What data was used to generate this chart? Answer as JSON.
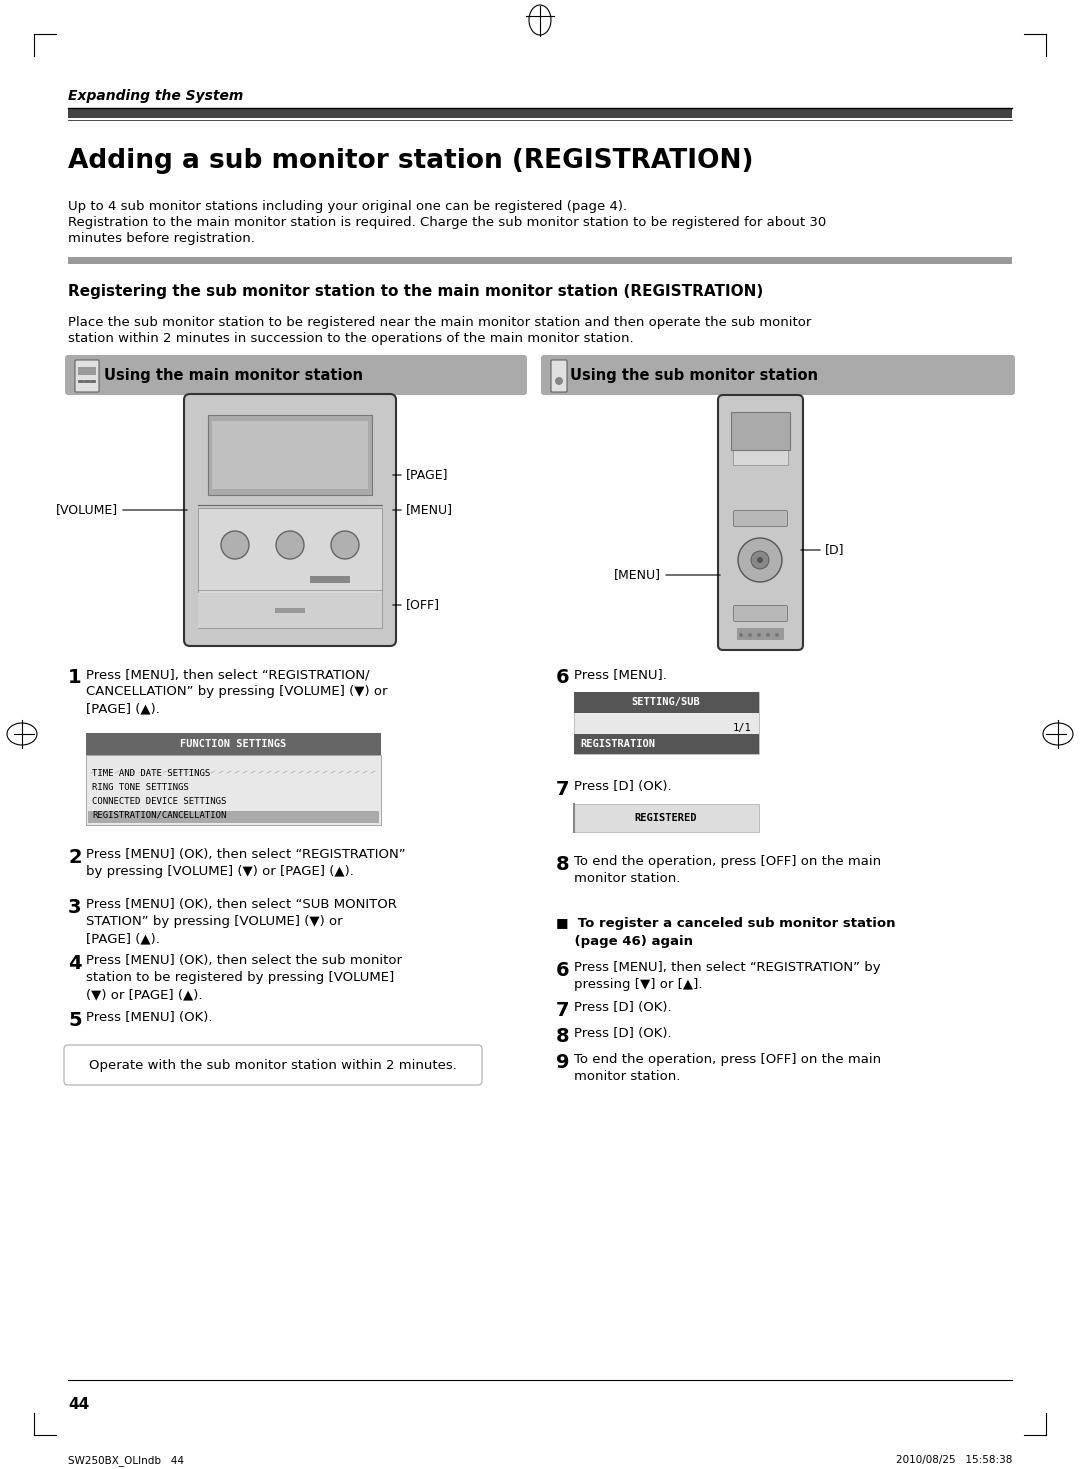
{
  "page_title": "Adding a sub monitor station (REGISTRATION)",
  "section_header": "Expanding the System",
  "subtitle": "Registering the sub monitor station to the main monitor station (REGISTRATION)",
  "intro_text1": "Up to 4 sub monitor stations including your original one can be registered (page 4).",
  "intro_text2_line1": "Registration to the main monitor station is required. Charge the sub monitor station to be registered for about 30",
  "intro_text2_line2": "minutes before registration.",
  "place_text_line1": "Place the sub monitor station to be registered near the main monitor station and then operate the sub monitor",
  "place_text_line2": "station within 2 minutes in succession to the operations of the main monitor station.",
  "left_header": "Using the main monitor station",
  "right_header": "Using the sub monitor station",
  "notice_box": "Operate with the sub monitor station within 2 minutes.",
  "page_number": "44",
  "footer_left": "SW250BX_OLIndb   44",
  "footer_right": "2010/08/25   15:58:38",
  "bg_color": "#ffffff",
  "text_color": "#000000",
  "gray_rule_color": "#888888",
  "dark_rule_color": "#444444",
  "header_bg": "#aaaaaa",
  "menu_header_bg": "#666666",
  "menu_body_bg": "#e8e8e8",
  "menu_selected_bg": "#999999",
  "setting_header_bg": "#555555",
  "setting_selected_bg": "#555555",
  "registered_bg": "#dddddd",
  "device_body": "#cccccc",
  "device_screen": "#bbbbbb",
  "device_button": "#aaaaaa"
}
